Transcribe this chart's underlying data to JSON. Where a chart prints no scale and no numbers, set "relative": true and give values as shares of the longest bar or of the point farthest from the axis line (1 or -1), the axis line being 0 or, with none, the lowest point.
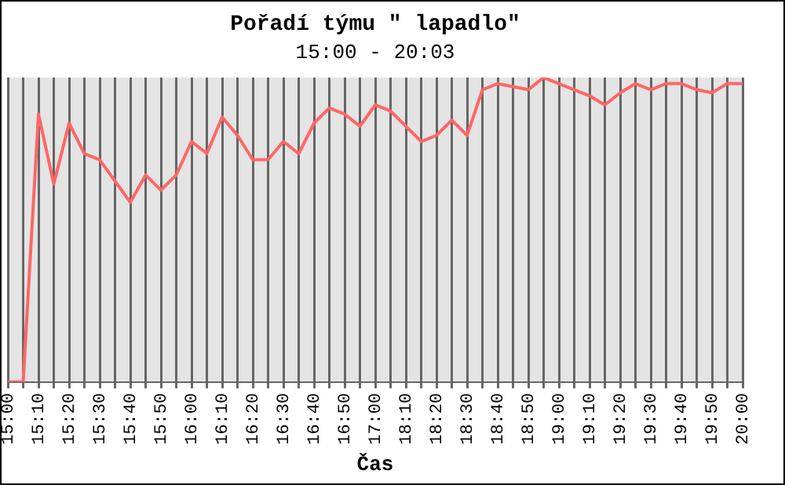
{
  "chart_data": {
    "type": "line",
    "title": "Pořadí týmu \" lapadlo\"",
    "subtitle": "15:00 - 20:03",
    "xlabel": "Čas",
    "relative": true,
    "grid": "x",
    "legend": false,
    "marker": "none",
    "line_style": "solid",
    "categories": [
      "15:00",
      null,
      "15:10",
      null,
      "15:20",
      null,
      "15:30",
      null,
      "15:40",
      null,
      "15:50",
      null,
      "16:00",
      null,
      "16:10",
      null,
      "16:20",
      null,
      "16:30",
      null,
      "16:40",
      null,
      "16:50",
      null,
      "17:00",
      null,
      "18:10",
      null,
      "18:20",
      null,
      "18:30",
      null,
      "18:40",
      null,
      "18:50",
      null,
      "19:00",
      null,
      "19:10",
      null,
      "19:20",
      null,
      "19:30",
      null,
      "19:40",
      null,
      "19:50",
      null,
      "20:00"
    ],
    "series": [
      {
        "color": "#ff6666",
        "values": [
          0,
          0,
          0.88,
          0.65,
          0.85,
          0.75,
          0.73,
          0.66,
          0.59,
          0.68,
          0.63,
          0.68,
          0.79,
          0.75,
          0.87,
          0.81,
          0.73,
          0.73,
          0.79,
          0.75,
          0.85,
          0.9,
          0.88,
          0.84,
          0.91,
          0.89,
          0.84,
          0.79,
          0.81,
          0.86,
          0.81,
          0.96,
          0.98,
          0.97,
          0.96,
          1,
          0.98,
          0.96,
          0.94,
          0.91,
          0.95,
          0.98,
          0.96,
          0.98,
          0.98,
          0.96,
          0.95,
          0.98,
          0.98
        ]
      }
    ]
  }
}
